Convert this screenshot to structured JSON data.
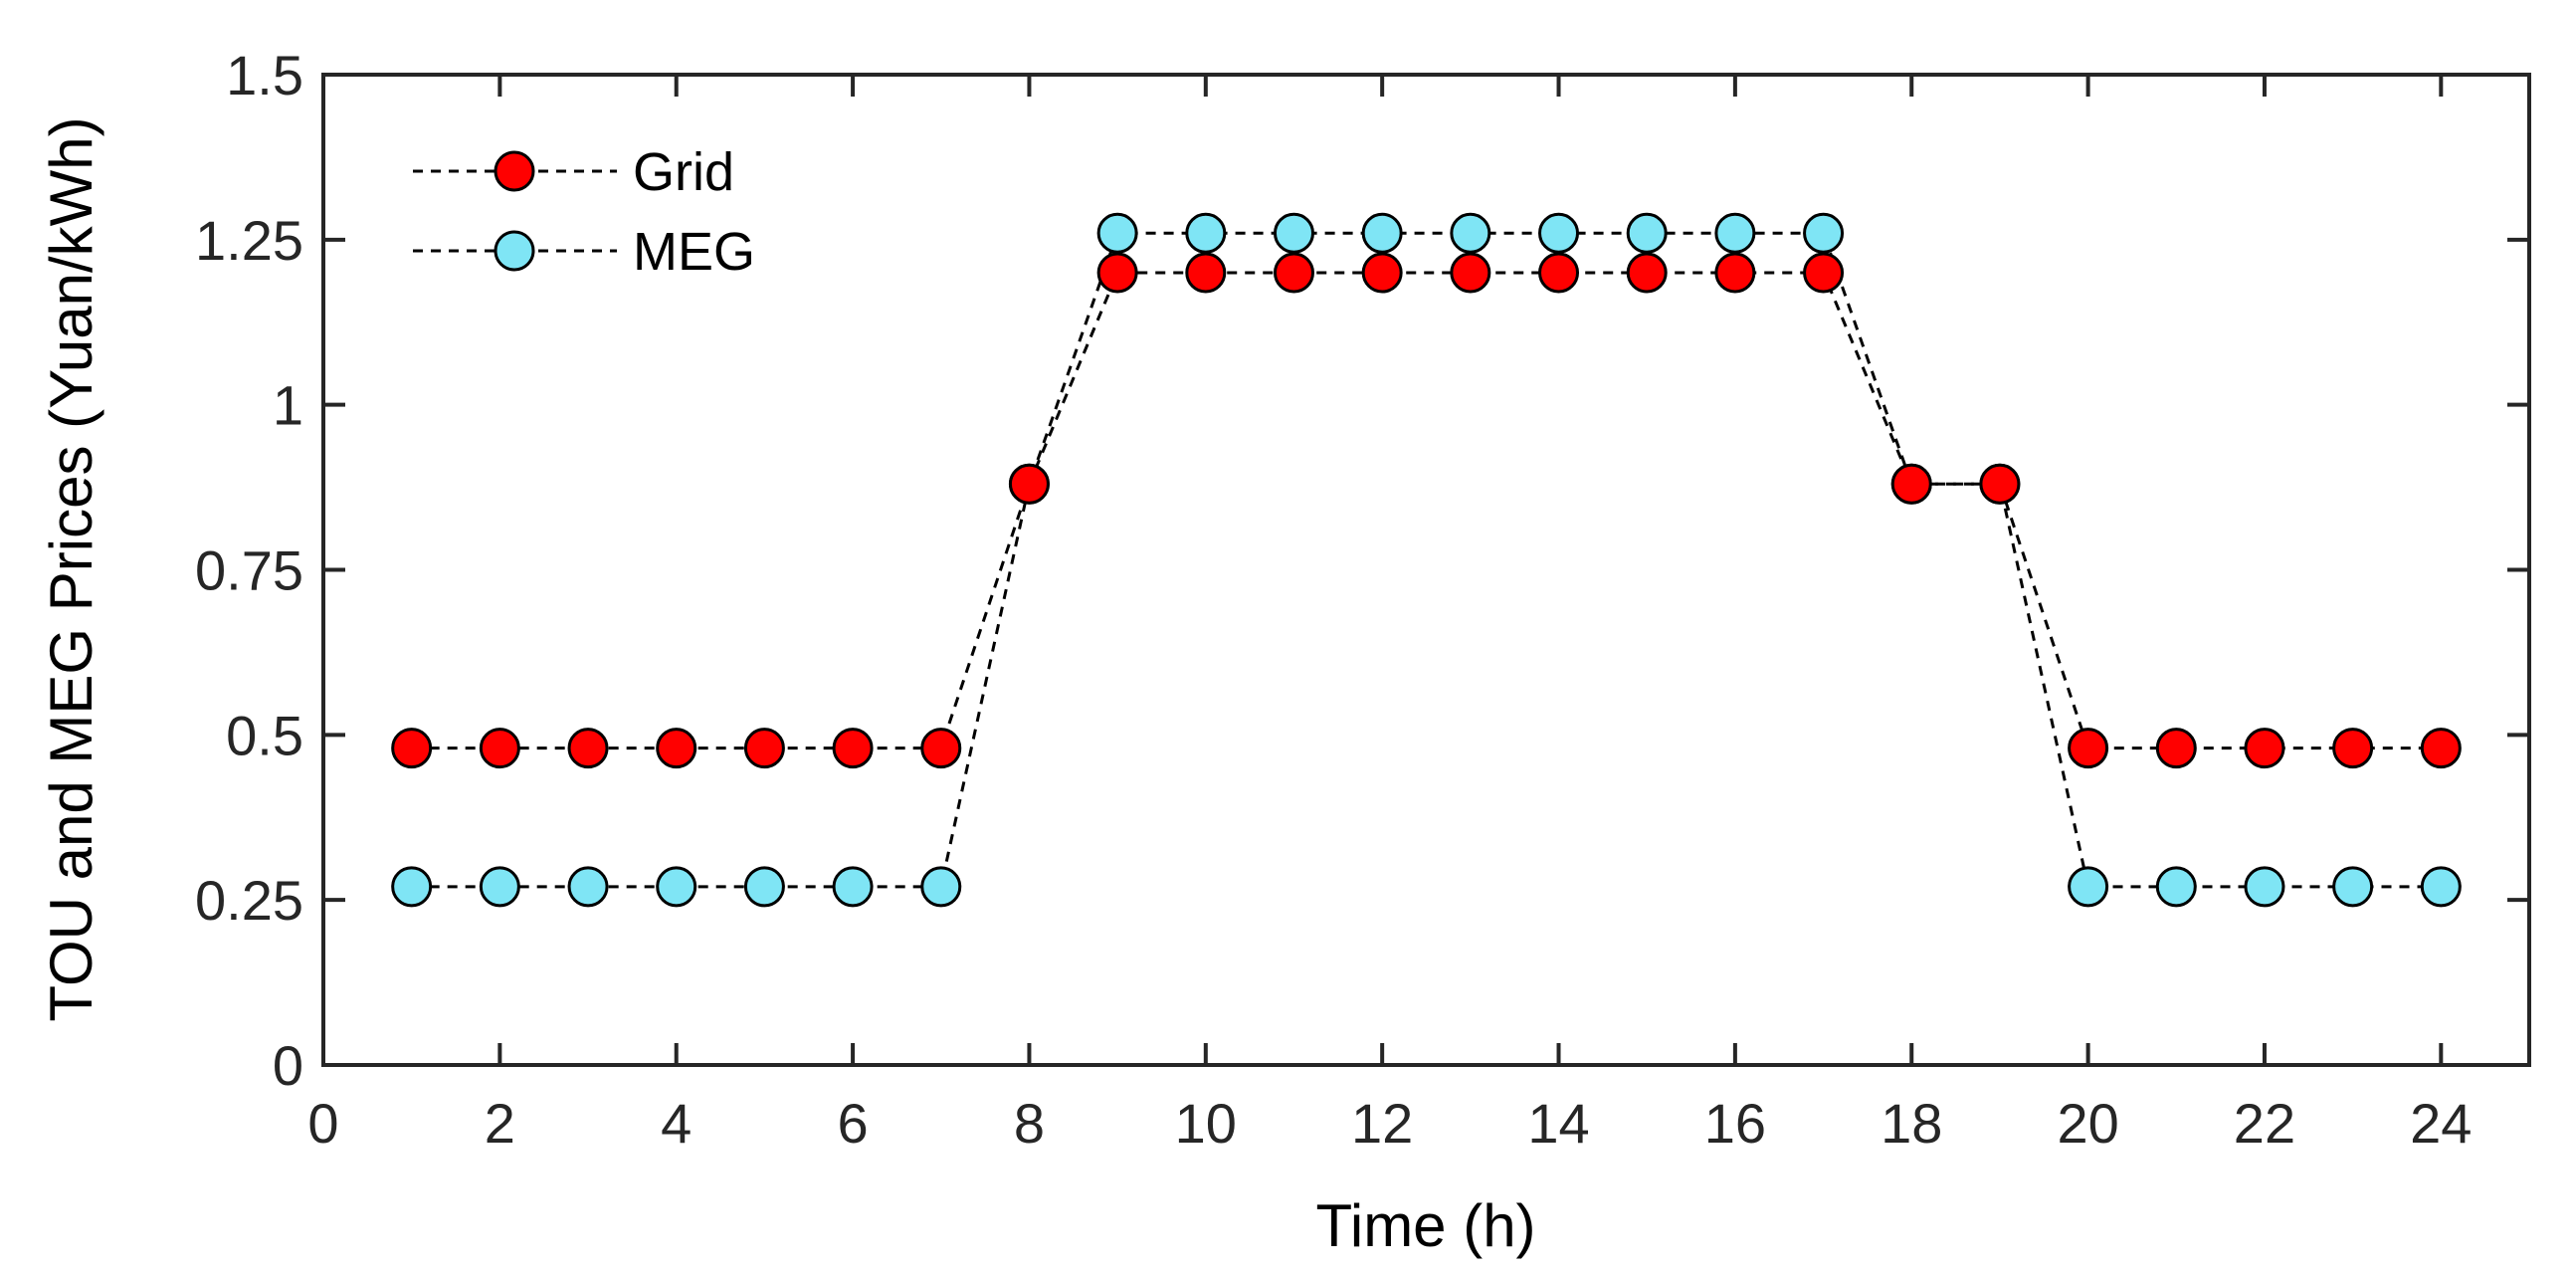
{
  "chart_data": {
    "type": "line",
    "title": "",
    "xlabel": "Time (h)",
    "ylabel": "TOU and MEG Prices (Yuan/kWh)",
    "xlim": [
      0,
      25
    ],
    "ylim": [
      0,
      1.5
    ],
    "xticks": [
      0,
      2,
      4,
      6,
      8,
      10,
      12,
      14,
      16,
      18,
      20,
      22,
      24
    ],
    "xtick_labels": [
      "0",
      "2",
      "4",
      "6",
      "8",
      "10",
      "12",
      "14",
      "16",
      "18",
      "20",
      "22",
      "24"
    ],
    "yticks": [
      0,
      0.25,
      0.5,
      0.75,
      1,
      1.25,
      1.5
    ],
    "ytick_labels": [
      "0",
      "0.25",
      "0.5",
      "0.75",
      "1",
      "1.25",
      "1.5"
    ],
    "grid": false,
    "legend_position": "top-left",
    "x": [
      1,
      2,
      3,
      4,
      5,
      6,
      7,
      8,
      9,
      10,
      11,
      12,
      13,
      14,
      15,
      16,
      17,
      18,
      19,
      20,
      21,
      22,
      23,
      24
    ],
    "series": [
      {
        "name": "MEG",
        "color": "#7fe5f5",
        "values": [
          0.27,
          0.27,
          0.27,
          0.27,
          0.27,
          0.27,
          0.27,
          0.88,
          1.26,
          1.26,
          1.26,
          1.26,
          1.26,
          1.26,
          1.26,
          1.26,
          1.26,
          0.88,
          0.88,
          0.27,
          0.27,
          0.27,
          0.27,
          0.27
        ]
      },
      {
        "name": "Grid",
        "color": "#ff0000",
        "values": [
          0.48,
          0.48,
          0.48,
          0.48,
          0.48,
          0.48,
          0.48,
          0.88,
          1.2,
          1.2,
          1.2,
          1.2,
          1.2,
          1.2,
          1.2,
          1.2,
          1.2,
          0.88,
          0.88,
          0.48,
          0.48,
          0.48,
          0.48,
          0.48
        ]
      }
    ],
    "legend_order": [
      "Grid",
      "MEG"
    ]
  }
}
